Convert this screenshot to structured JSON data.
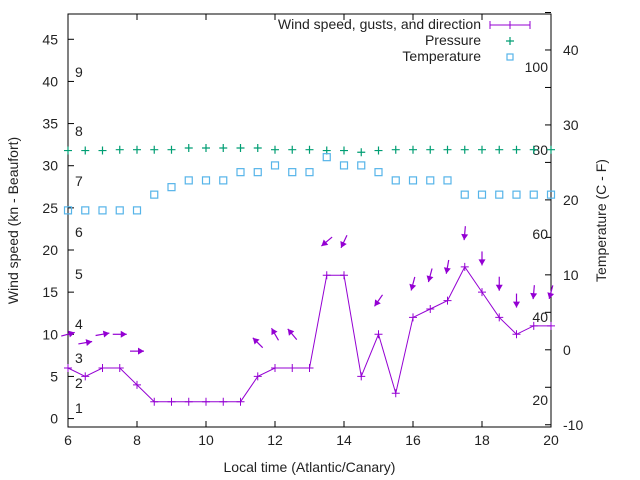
{
  "chart_data": {
    "type": "line",
    "xlabel": "Local time (Atlantic/Canary)",
    "ylabel": "Wind speed (kn - Beaufort)",
    "y2label": "Temperature (C - F)",
    "xlim": [
      6,
      20
    ],
    "ylim": [
      -1,
      48
    ],
    "y2lim": [
      -10.3,
      44.8
    ],
    "xticks": [
      6,
      8,
      10,
      12,
      14,
      16,
      18,
      20
    ],
    "yticks": [
      0,
      5,
      10,
      15,
      20,
      25,
      30,
      35,
      40,
      45
    ],
    "y2ticks": [
      -10,
      0,
      10,
      20,
      30,
      40
    ],
    "beaufort_labels": [
      "1",
      "2",
      "3",
      "4",
      "5",
      "6",
      "7",
      "8",
      "9"
    ],
    "fahrenheit_labels": [
      "20",
      "40",
      "60",
      "80",
      "100"
    ],
    "legend": {
      "position": "top-right",
      "entries": [
        "Wind speed, gusts, and direction",
        "Pressure",
        "Temperature"
      ]
    },
    "colors": {
      "wind": "#9400d3",
      "pressure": "#009e73",
      "temperature": "#56b4e9"
    },
    "x": [
      6,
      6.5,
      7,
      7.5,
      8,
      8.5,
      9,
      9.5,
      10,
      10.5,
      11,
      11.5,
      12,
      12.5,
      13,
      13.5,
      14,
      14.5,
      15,
      15.5,
      16,
      16.5,
      17,
      17.5,
      18,
      18.5,
      19,
      19.5,
      20
    ],
    "series": [
      {
        "name": "Wind speed",
        "axis": "left",
        "values": [
          6,
          5,
          6,
          6,
          4,
          2,
          2,
          2,
          2,
          2,
          2,
          5,
          6,
          6,
          6,
          17,
          17,
          5,
          10,
          3,
          12,
          13,
          14,
          18,
          15,
          12,
          10,
          11,
          11
        ]
      },
      {
        "name": "Pressure",
        "axis": "left",
        "values": [
          31.8,
          31.8,
          31.8,
          31.9,
          31.9,
          31.9,
          31.9,
          32.1,
          32.1,
          32.1,
          32.1,
          32.1,
          31.9,
          31.9,
          31.9,
          31.8,
          31.8,
          31.6,
          31.8,
          31.9,
          31.9,
          31.9,
          31.9,
          31.9,
          31.9,
          31.9,
          31.9,
          31.9,
          31.9
        ]
      },
      {
        "name": "Temperature",
        "axis": "right",
        "values": [
          18.6,
          18.6,
          18.6,
          18.6,
          18.6,
          20.7,
          21.7,
          22.6,
          22.6,
          22.6,
          23.7,
          23.7,
          24.6,
          23.7,
          23.7,
          25.7,
          24.6,
          24.6,
          23.7,
          22.6,
          22.6,
          22.6,
          22.6,
          20.7,
          20.7,
          20.7,
          20.7,
          20.7,
          20.7
        ]
      }
    ],
    "gust_arrows": {
      "x": [
        6,
        6.5,
        7,
        7.5,
        8,
        11.5,
        12,
        12.5,
        13.5,
        14,
        15,
        16,
        16.5,
        17,
        17.5,
        18,
        18.5,
        19,
        19.5,
        20
      ],
      "gust": [
        10,
        9,
        10,
        10,
        8,
        9,
        10,
        10,
        21,
        21,
        14,
        16,
        17,
        18,
        22,
        19,
        16,
        14,
        15,
        15
      ],
      "arrow_heading_deg": [
        75,
        80,
        80,
        90,
        90,
        315,
        330,
        320,
        230,
        205,
        215,
        195,
        195,
        190,
        185,
        180,
        180,
        180,
        185,
        195
      ]
    }
  }
}
